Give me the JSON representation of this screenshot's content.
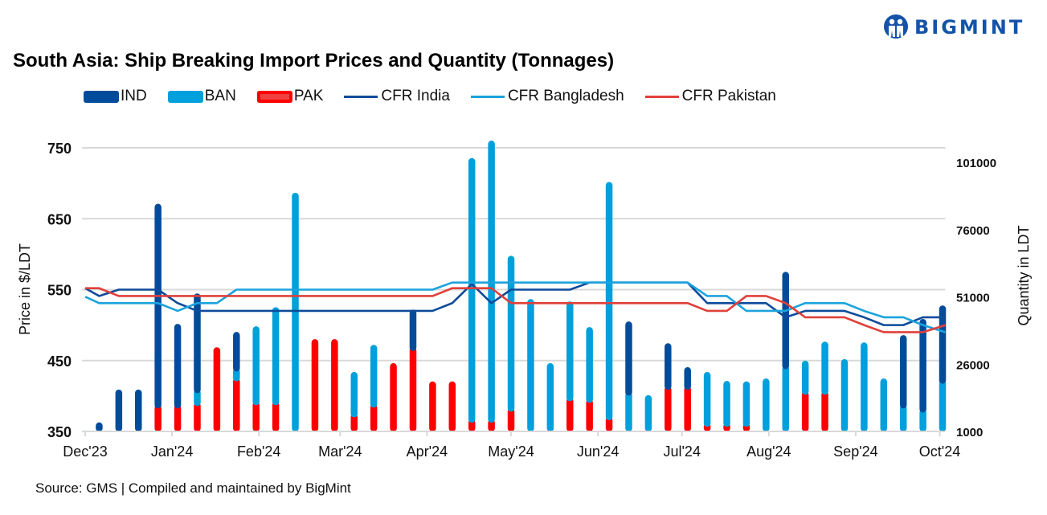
{
  "logo": {
    "text": "BIGMINT",
    "color": "#1453a8"
  },
  "chart_data": {
    "type": "bar+line",
    "title": "South Asia: Ship Breaking Import Prices and Quantity (Tonnages)",
    "source": "Source: GMS | Compiled and maintained by BigMint",
    "ylabel_left": "Price in $/LDT",
    "ylabel_right": "Quantity in LDT",
    "ylim_left": [
      350,
      750
    ],
    "yticks_left": [
      "350",
      "450",
      "550",
      "650",
      "750"
    ],
    "ylim_right": [
      1000,
      101000
    ],
    "yticks_right": [
      "1000",
      "26000",
      "51000",
      "76000",
      "101000"
    ],
    "xlim": [
      "2023-12-01",
      "2024-10-03"
    ],
    "xticks": [
      {
        "date": "2023-12-01",
        "label": "Dec'23"
      },
      {
        "date": "2024-01-01",
        "label": "Jan'24"
      },
      {
        "date": "2024-02-01",
        "label": "Feb'24"
      },
      {
        "date": "2024-03-01",
        "label": "Mar'24"
      },
      {
        "date": "2024-04-01",
        "label": "Apr'24"
      },
      {
        "date": "2024-05-01",
        "label": "May'24"
      },
      {
        "date": "2024-06-01",
        "label": "Jun'24"
      },
      {
        "date": "2024-07-01",
        "label": "Jul'24"
      },
      {
        "date": "2024-08-01",
        "label": "Aug'24"
      },
      {
        "date": "2024-09-01",
        "label": "Sep'24"
      },
      {
        "date": "2024-10-01",
        "label": "Oct'24"
      }
    ],
    "grid": true,
    "legend_position": "top",
    "bar_first_week": "2023-12-06",
    "bar_interval_days": 7,
    "bar_series": [
      {
        "name": "PAK",
        "color": "#ff0000",
        "axis": "right",
        "values": [
          0,
          0,
          0,
          10800,
          10800,
          11700,
          32200,
          20900,
          12000,
          12000,
          0,
          35200,
          35200,
          7500,
          11100,
          26300,
          32200,
          19500,
          19500,
          5500,
          5500,
          9600,
          0,
          0,
          13500,
          12900,
          6400,
          0,
          0,
          17700,
          17700,
          4000,
          4000,
          4000,
          0,
          0,
          15900,
          15900,
          0,
          0,
          0,
          0,
          0,
          0
        ]
      },
      {
        "name": "BAN",
        "color": "#00a0dc",
        "axis": "right",
        "values": [
          0,
          0,
          0,
          0,
          0,
          4800,
          0,
          3600,
          28000,
          35100,
          89600,
          0,
          0,
          15500,
          22000,
          0,
          0,
          0,
          0,
          97000,
          103500,
          56600,
          50100,
          26300,
          35700,
          26800,
          87200,
          15600,
          14400,
          0,
          0,
          19000,
          15700,
          15500,
          20600,
          25400,
          11300,
          18400,
          27800,
          34000,
          20600,
          10800,
          9300,
          20000
        ]
      },
      {
        "name": "IND",
        "color": "#004c9a",
        "axis": "right",
        "values": [
          4300,
          16500,
          16500,
          74700,
          30100,
          35700,
          0,
          13400,
          0,
          0,
          0,
          0,
          0,
          0,
          0,
          0,
          14000,
          0,
          0,
          0,
          0,
          0,
          0,
          0,
          0,
          0,
          0,
          26200,
          0,
          16000,
          7100,
          0,
          0,
          0,
          0,
          34800,
          0,
          0,
          0,
          0,
          0,
          25900,
          33400,
          27700
        ]
      }
    ],
    "line_first_date": "2023-12-01",
    "line_series": [
      {
        "name": "CFR India",
        "color": "#0d4c9a",
        "axis": "left",
        "values": [
          552,
          541,
          550,
          550,
          550,
          531,
          520,
          520,
          520,
          520,
          520,
          520,
          520,
          520,
          520,
          520,
          520,
          520,
          520,
          531,
          558,
          531,
          550,
          550,
          550,
          550,
          560,
          560,
          560,
          560,
          560,
          560,
          531,
          531,
          531,
          531,
          511,
          520,
          520,
          520,
          511,
          500,
          500,
          511,
          511
        ]
      },
      {
        "name": "CFR Bangladesh",
        "color": "#1ca3dd",
        "axis": "left",
        "values": [
          540,
          531,
          531,
          531,
          531,
          520,
          531,
          531,
          550,
          550,
          550,
          550,
          550,
          550,
          550,
          550,
          550,
          550,
          550,
          560,
          560,
          560,
          560,
          560,
          560,
          560,
          560,
          560,
          560,
          560,
          560,
          560,
          541,
          541,
          520,
          520,
          520,
          531,
          531,
          531,
          520,
          511,
          511,
          500,
          490
        ]
      },
      {
        "name": "CFR Pakistan",
        "color": "#e0403a",
        "axis": "left",
        "values": [
          552,
          552,
          541,
          541,
          541,
          541,
          541,
          541,
          541,
          541,
          541,
          541,
          541,
          541,
          541,
          541,
          541,
          541,
          541,
          552,
          552,
          552,
          531,
          531,
          531,
          531,
          531,
          531,
          531,
          531,
          531,
          531,
          520,
          520,
          541,
          541,
          531,
          511,
          511,
          511,
          500,
          490,
          490,
          490,
          500
        ]
      }
    ]
  }
}
